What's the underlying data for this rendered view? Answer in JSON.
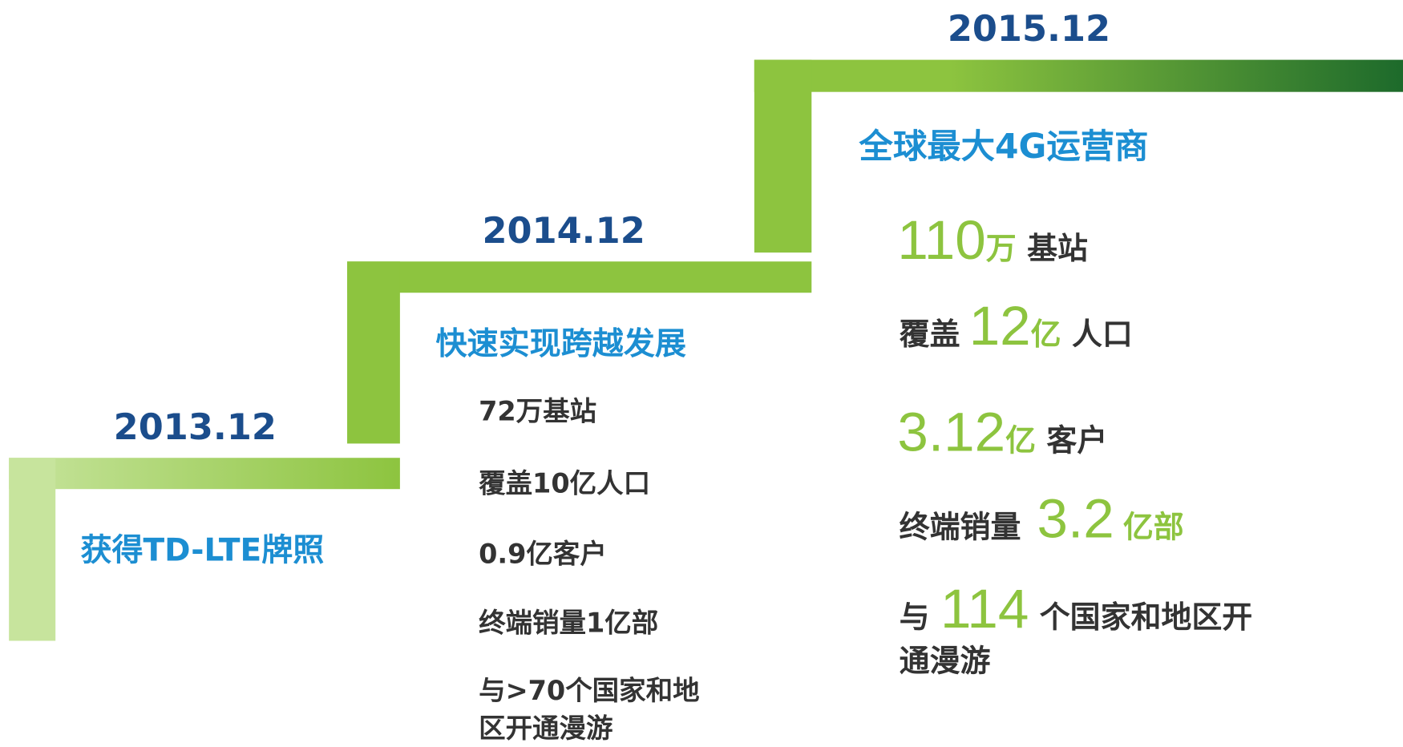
{
  "steps": [
    {
      "date": "2013.12",
      "title": "获得TD-LTE牌照"
    },
    {
      "date": "2014.12",
      "title": "快速实现跨越发展",
      "items": [
        [
          "72万基站"
        ],
        [
          "覆盖10亿人口"
        ],
        [
          "0.9亿客户"
        ],
        [
          "终端销量1亿部"
        ],
        [
          "与>70个国家和地"
        ],
        [
          "区开通漫游"
        ]
      ]
    },
    {
      "date": "2015.12",
      "title": "全球最大4G运营商",
      "items": [
        [
          "110",
          "万",
          "基站"
        ],
        [
          "覆盖",
          "12",
          "亿",
          "人口"
        ],
        [
          "3.12",
          "亿",
          "客户"
        ],
        [
          "终端销量",
          "3.2",
          "亿部"
        ],
        [
          "与",
          "114",
          "个国家和地区开"
        ],
        [
          "通漫游"
        ]
      ]
    }
  ]
}
